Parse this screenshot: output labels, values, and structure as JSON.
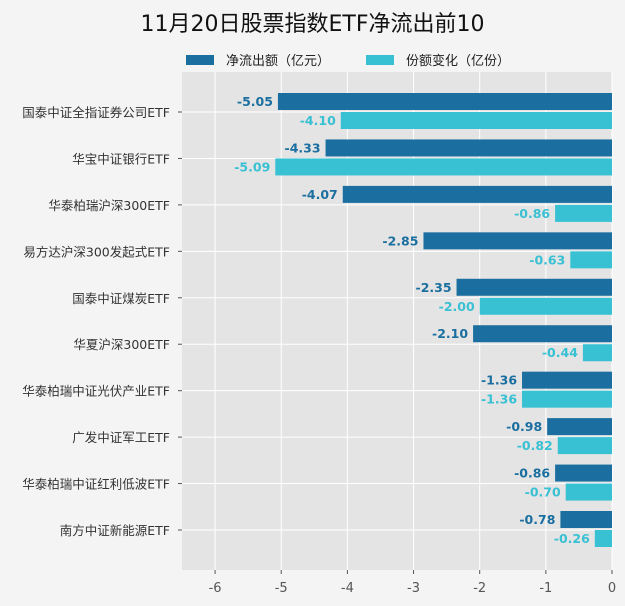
{
  "chart_data": {
    "type": "bar",
    "orientation": "horizontal",
    "title": "11月20日股票指数ETF净流出前10",
    "categories": [
      "国泰中证全指证券公司ETF",
      "华宝中证银行ETF",
      "华泰柏瑞沪深300ETF",
      "易方达沪深300发起式ETF",
      "国泰中证煤炭ETF",
      "华夏沪深300ETF",
      "华泰柏瑞中证光伏产业ETF",
      "广发中证军工ETF",
      "华泰柏瑞中证红利低波ETF",
      "南方中证新能源ETF"
    ],
    "series": [
      {
        "name": "净流出额（亿元）",
        "color": "#1b6fa0",
        "values": [
          -5.05,
          -4.33,
          -4.07,
          -2.85,
          -2.35,
          -2.1,
          -1.36,
          -0.98,
          -0.86,
          -0.78
        ],
        "labels": [
          "-5.05",
          "-4.33",
          "-4.07",
          "-2.85",
          "-2.35",
          "-2.10",
          "-1.36",
          "-0.98",
          "-0.86",
          "-0.78"
        ]
      },
      {
        "name": "份额变化（亿份）",
        "color": "#38c0d3",
        "values": [
          -4.1,
          -5.09,
          -0.86,
          -0.63,
          -2.0,
          -0.44,
          -1.36,
          -0.82,
          -0.7,
          -0.26
        ],
        "labels": [
          "-4.10",
          "-5.09",
          "-0.86",
          "-0.63",
          "-2.00",
          "-0.44",
          "-1.36",
          "-0.82",
          "-0.70",
          "-0.26"
        ]
      }
    ],
    "xlim": [
      -6.5,
      0
    ],
    "xticks": [
      "-6",
      "-5",
      "-4",
      "-3",
      "-2",
      "-1",
      "0"
    ],
    "grid": true,
    "legend": "top"
  }
}
